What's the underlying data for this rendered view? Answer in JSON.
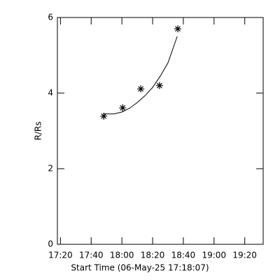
{
  "chart_data": {
    "type": "scatter",
    "xlabel": "Start Time (06-May-25 17:18:07)",
    "ylabel": "R/Rs",
    "xlim": [
      1038,
      1172
    ],
    "xticks": [
      {
        "value": 1040,
        "label": "17:20"
      },
      {
        "value": 1060,
        "label": "17:40"
      },
      {
        "value": 1080,
        "label": "18:00"
      },
      {
        "value": 1100,
        "label": "18:20"
      },
      {
        "value": 1120,
        "label": "18:40"
      },
      {
        "value": 1140,
        "label": "19:00"
      },
      {
        "value": 1160,
        "label": "19:20"
      }
    ],
    "ylim": [
      0,
      6
    ],
    "yticks": [
      0,
      2,
      4,
      6
    ],
    "series": [
      {
        "marker": "asterisk",
        "color": "#000000",
        "x": [
          1068.2,
          1080.5,
          1092.3,
          1104.5,
          1116.4
        ],
        "values": [
          3.39,
          3.61,
          4.11,
          4.2,
          5.7
        ]
      },
      {
        "marker": "line",
        "color": "#000000",
        "x": [
          1068,
          1075,
          1080,
          1085,
          1090,
          1095,
          1100,
          1105,
          1110,
          1116
        ],
        "values": [
          3.45,
          3.45,
          3.5,
          3.6,
          3.75,
          3.93,
          4.15,
          4.45,
          4.8,
          5.5
        ]
      }
    ]
  }
}
